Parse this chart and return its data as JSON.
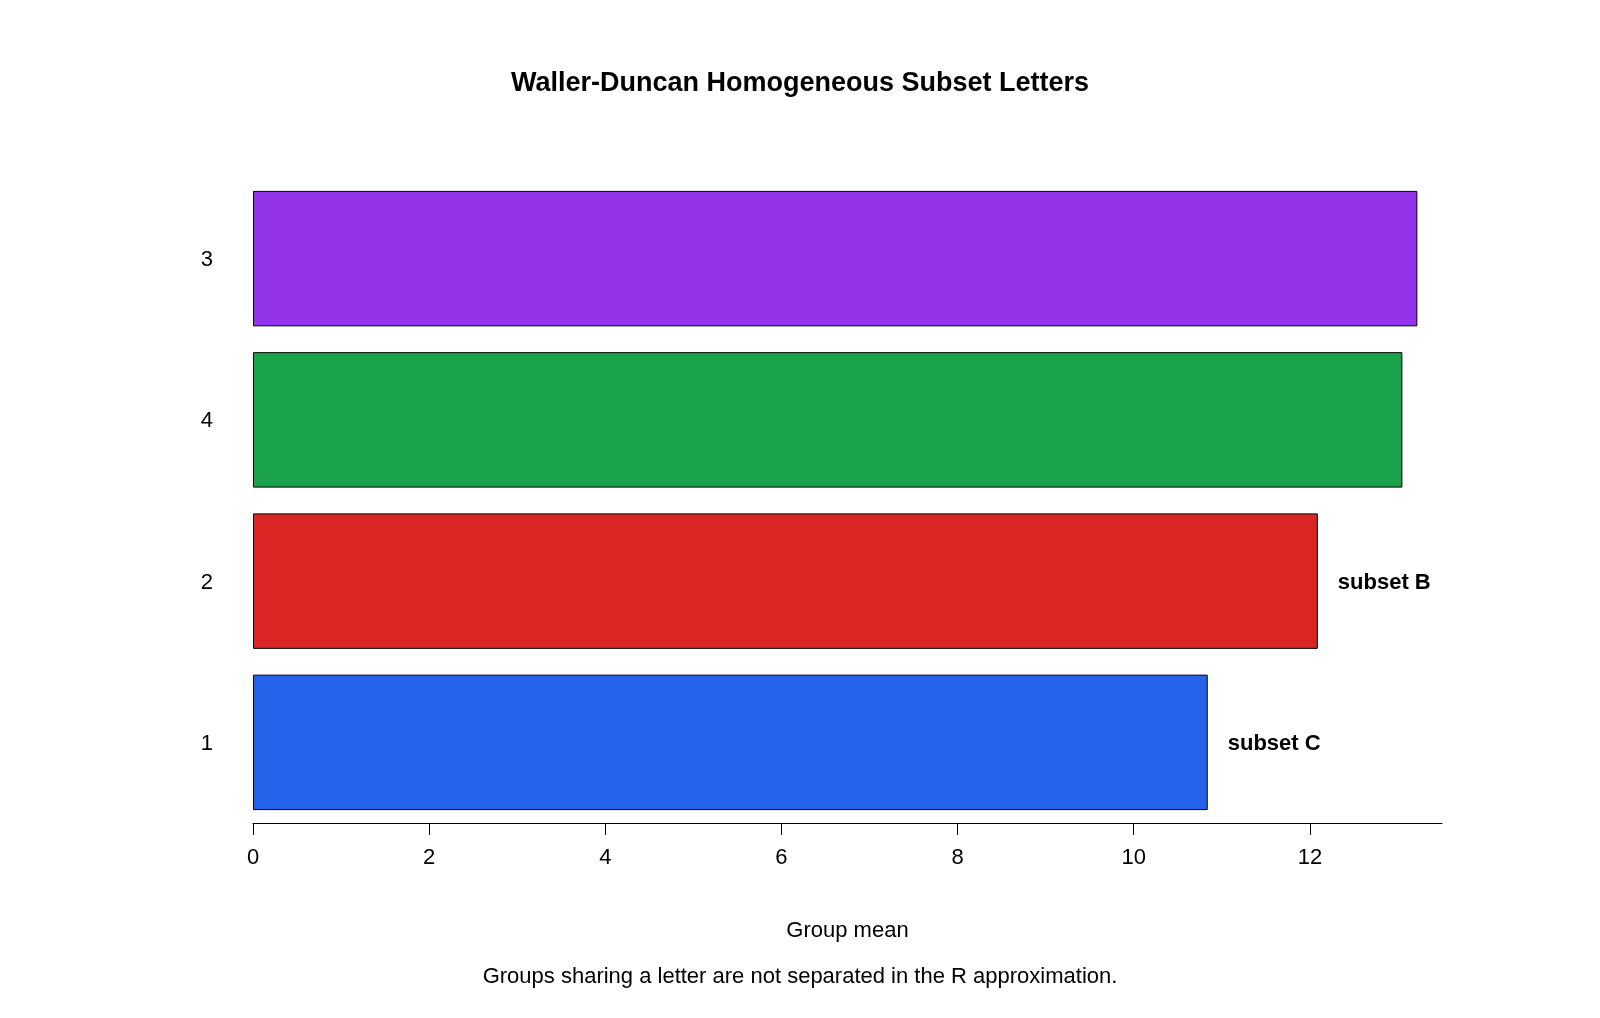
{
  "chart_data": {
    "type": "bar",
    "orientation": "horizontal",
    "title": "Waller-Duncan Homogeneous Subset Letters",
    "xlabel": "Group mean",
    "categories": [
      "3",
      "4",
      "2",
      "1"
    ],
    "values": [
      13.22,
      13.05,
      12.09,
      10.84
    ],
    "colors": [
      "#9333ea",
      "#1aa34a",
      "#dc2626",
      "#2563eb"
    ],
    "value_labels": [
      null,
      null,
      "subset B",
      "subset C"
    ],
    "xlim": [
      0,
      13.5
    ],
    "xticks": [
      0,
      2,
      4,
      6,
      8,
      10,
      12
    ],
    "grid": false,
    "annotations": [
      "Groups sharing a letter are not separated in the R approximation."
    ]
  }
}
